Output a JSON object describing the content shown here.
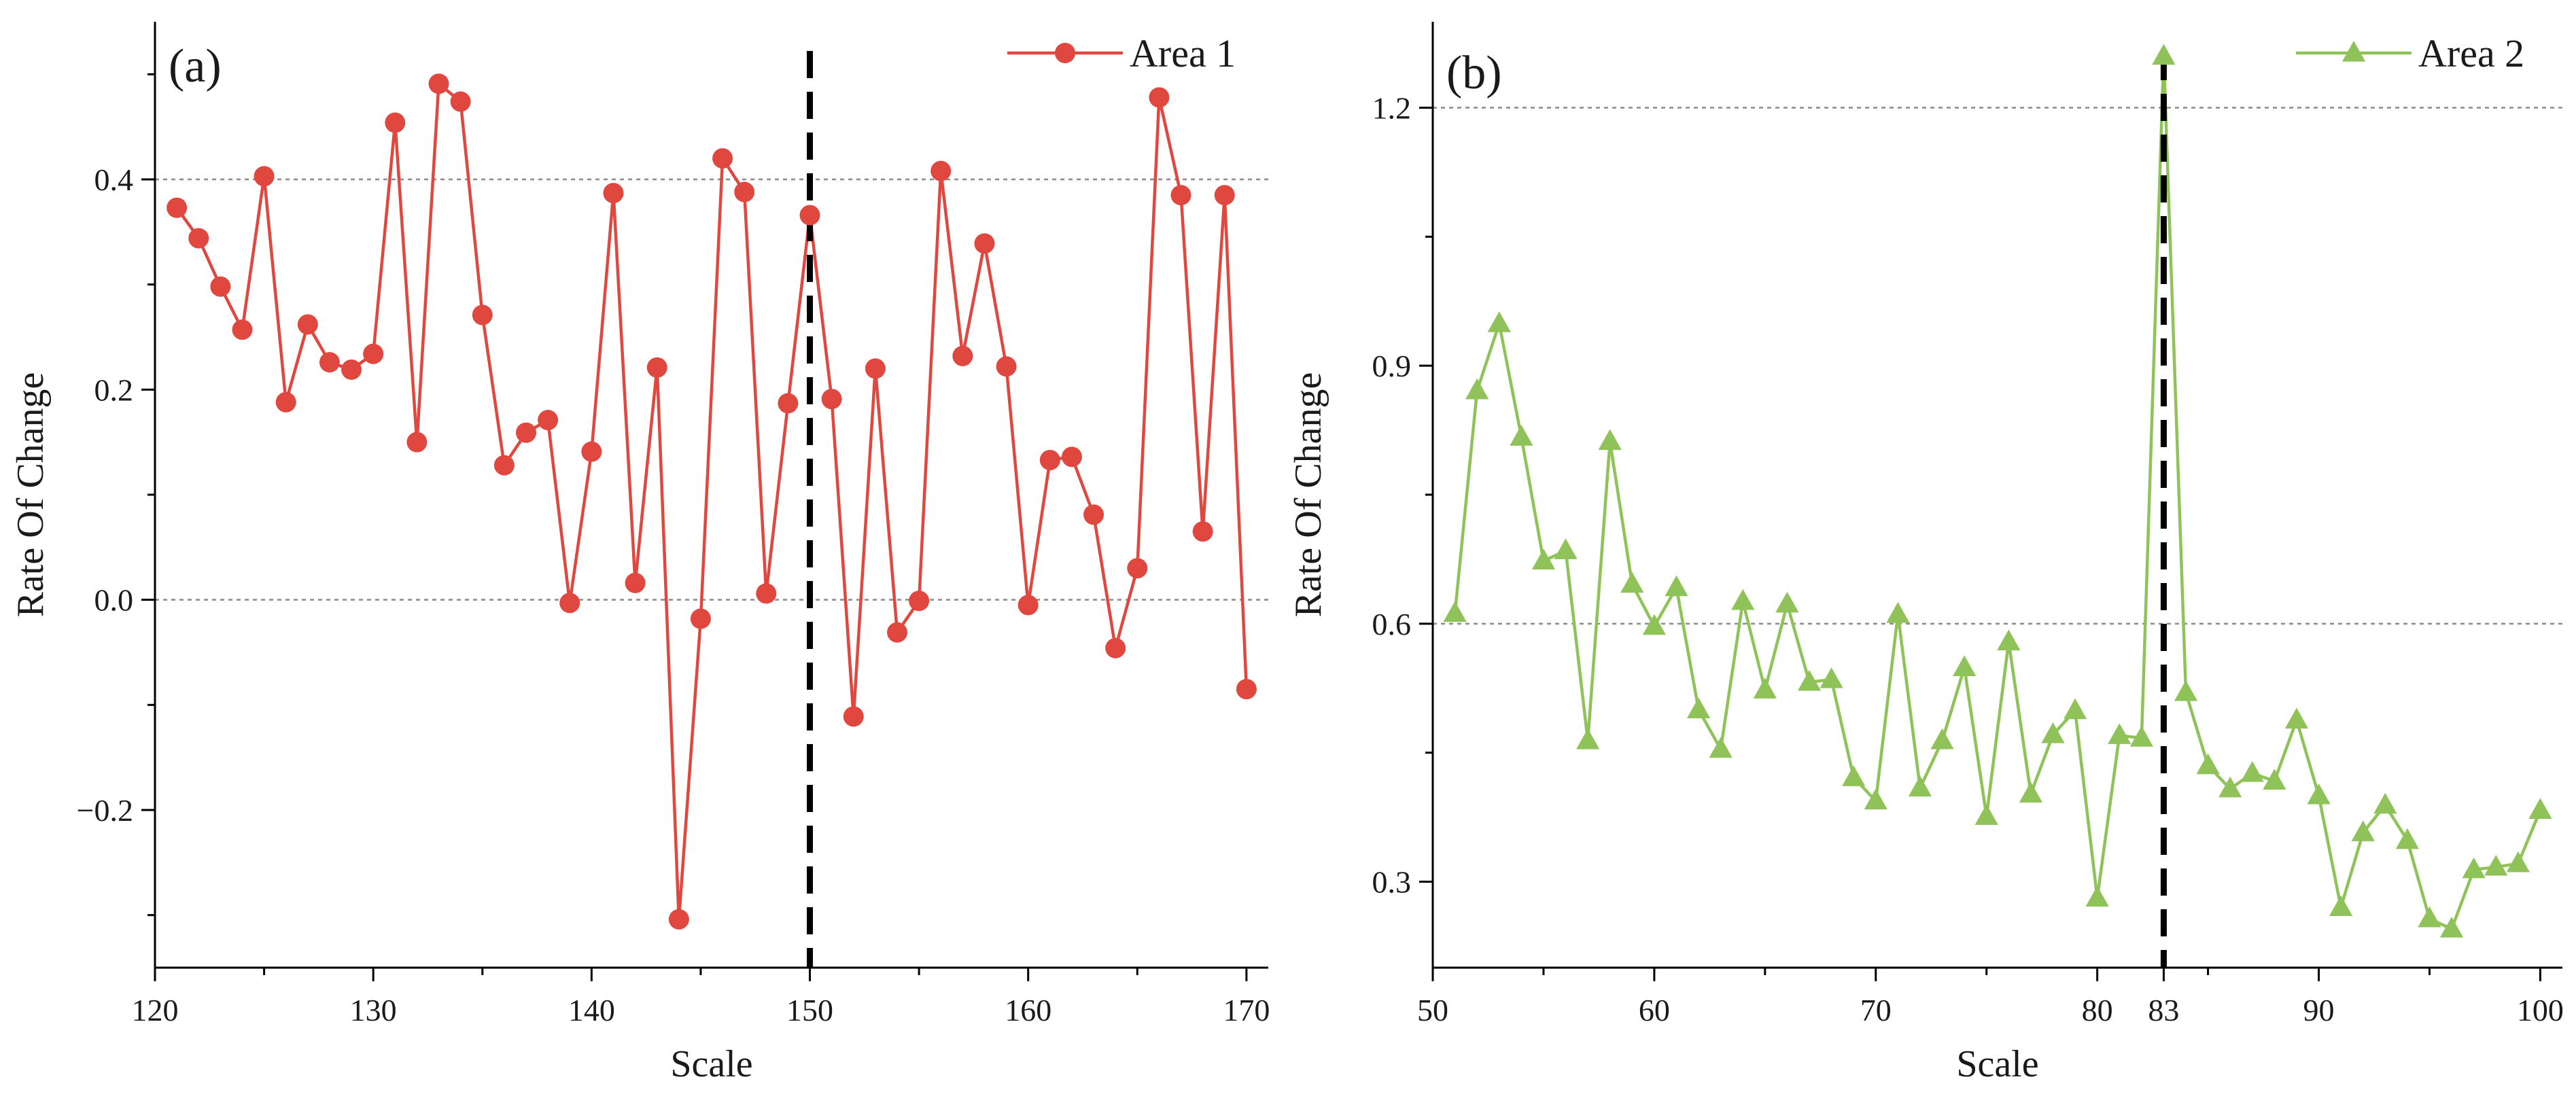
{
  "chart_data": [
    {
      "type": "line",
      "panel_label": "(a)",
      "xlabel": "Scale",
      "ylabel": "Rate Of Change",
      "xlim": [
        120,
        171
      ],
      "ylim": [
        -0.35,
        0.55
      ],
      "x_ticks": [
        120,
        130,
        140,
        150,
        160,
        170
      ],
      "y_ticks": [
        -0.2,
        0.0,
        0.2,
        0.4
      ],
      "x_tick_labels": [
        "120",
        "130",
        "140",
        "150",
        "160",
        "170"
      ],
      "y_tick_labels": [
        "−0.2",
        "0.0",
        "0.2",
        "0.4"
      ],
      "grid_y": [
        0.0,
        0.4
      ],
      "vline_x": 150,
      "marker": "circle",
      "color": "#e0473f",
      "legend_position": "top-right",
      "series": [
        {
          "name": "Area 1",
          "x": [
            121,
            122,
            123,
            124,
            125,
            126,
            127,
            128,
            129,
            130,
            131,
            132,
            133,
            134,
            135,
            136,
            137,
            138,
            139,
            140,
            141,
            142,
            143,
            144,
            145,
            146,
            147,
            148,
            149,
            150,
            151,
            152,
            153,
            154,
            155,
            156,
            157,
            158,
            159,
            160,
            161,
            162,
            163,
            164,
            165,
            166,
            167,
            168,
            169,
            170
          ],
          "values": [
            0.373,
            0.344,
            0.298,
            0.257,
            0.403,
            0.188,
            0.262,
            0.226,
            0.219,
            0.234,
            0.454,
            0.15,
            0.491,
            0.474,
            0.271,
            0.128,
            0.159,
            0.171,
            -0.003,
            0.141,
            0.387,
            0.016,
            0.221,
            -0.304,
            -0.018,
            0.42,
            0.388,
            0.006,
            0.187,
            0.366,
            0.191,
            -0.111,
            0.22,
            -0.031,
            -0.001,
            0.408,
            0.232,
            0.339,
            0.222,
            -0.005,
            0.133,
            0.136,
            0.081,
            -0.046,
            0.03,
            0.478,
            0.385,
            0.065,
            0.385,
            -0.085
          ]
        }
      ]
    },
    {
      "type": "line",
      "panel_label": "(b)",
      "xlabel": "Scale",
      "ylabel": "Rate Of Change",
      "xlim": [
        50,
        101
      ],
      "ylim": [
        0.2,
        1.3
      ],
      "x_ticks": [
        50,
        60,
        70,
        80,
        83,
        90,
        100
      ],
      "y_ticks": [
        0.3,
        0.6,
        0.9,
        1.2
      ],
      "x_tick_labels": [
        "50",
        "60",
        "70",
        "80",
        "83",
        "90",
        "100"
      ],
      "y_tick_labels": [
        "0.3",
        "0.6",
        "0.9",
        "1.2"
      ],
      "grid_y": [
        0.6,
        1.2
      ],
      "vline_x": 83,
      "marker": "triangle",
      "color": "#8fc35a",
      "legend_position": "top-right",
      "series": [
        {
          "name": "Area 2",
          "x": [
            51,
            52,
            53,
            54,
            55,
            56,
            57,
            58,
            59,
            60,
            61,
            62,
            63,
            64,
            65,
            66,
            67,
            68,
            69,
            70,
            71,
            72,
            73,
            74,
            75,
            76,
            77,
            78,
            79,
            80,
            81,
            82,
            83,
            84,
            85,
            86,
            87,
            88,
            89,
            90,
            91,
            92,
            93,
            94,
            95,
            96,
            97,
            98,
            99,
            100
          ],
          "values": [
            0.612,
            0.871,
            0.949,
            0.817,
            0.673,
            0.685,
            0.464,
            0.812,
            0.646,
            0.597,
            0.642,
            0.5,
            0.454,
            0.626,
            0.523,
            0.623,
            0.532,
            0.535,
            0.421,
            0.394,
            0.611,
            0.409,
            0.464,
            0.549,
            0.376,
            0.579,
            0.402,
            0.471,
            0.499,
            0.281,
            0.47,
            0.467,
            1.26,
            0.52,
            0.435,
            0.408,
            0.426,
            0.417,
            0.488,
            0.4,
            0.27,
            0.357,
            0.389,
            0.348,
            0.257,
            0.245,
            0.314,
            0.317,
            0.321,
            0.383
          ]
        }
      ]
    }
  ]
}
